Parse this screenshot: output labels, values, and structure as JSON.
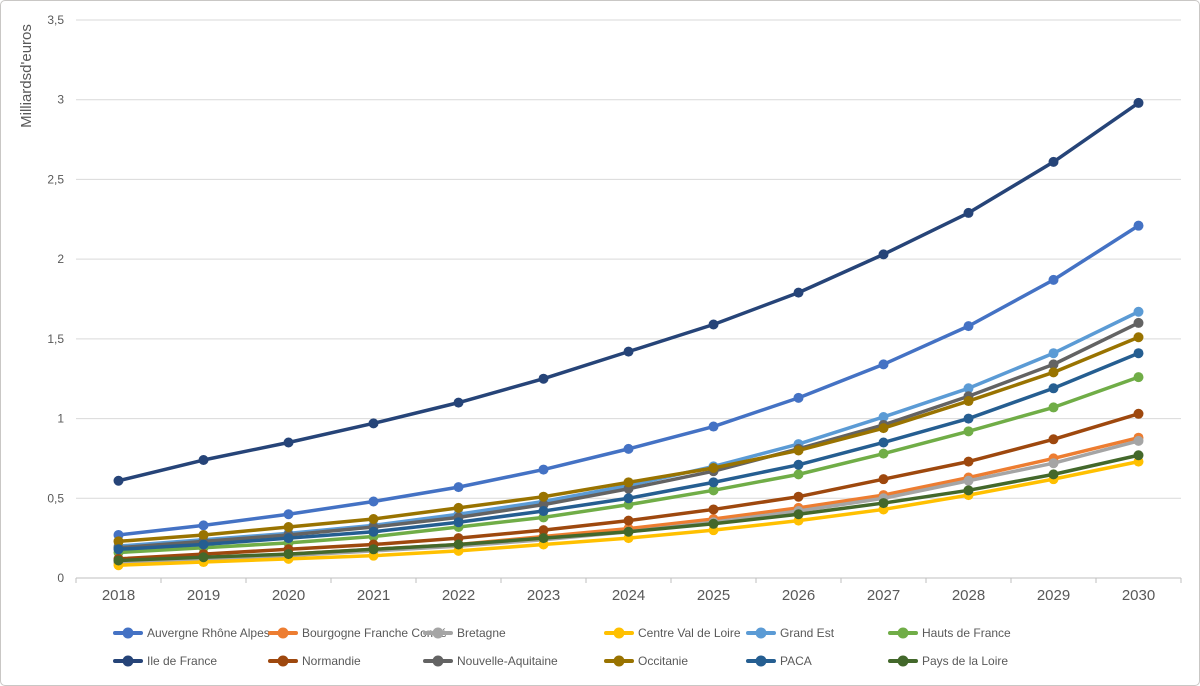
{
  "chart_data": {
    "type": "line",
    "title": "",
    "xlabel": "",
    "ylabel": "Milliardsd'euros",
    "ylim": [
      0,
      3.5
    ],
    "grid": true,
    "legend_position": "bottom",
    "x_labels": [
      "2018",
      "2019",
      "2020",
      "2021",
      "2022",
      "2023",
      "2024",
      "2025",
      "2026",
      "2027",
      "2028",
      "2029",
      "2030"
    ],
    "y_tick_values": [
      0,
      0.5,
      1,
      1.5,
      2,
      2.5,
      3,
      3.5
    ],
    "y_tick_labels": [
      "0",
      "0,5",
      "1",
      "1,5",
      "2",
      "2,5",
      "3",
      "3,5"
    ],
    "series": [
      {
        "name": "Auvergne Rhône Alpes",
        "color": "#4472C4",
        "values": [
          0.27,
          0.33,
          0.4,
          0.48,
          0.57,
          0.68,
          0.81,
          0.95,
          1.13,
          1.34,
          1.58,
          1.87,
          2.21
        ]
      },
      {
        "name": "Bourgogne Franche Comté",
        "color": "#ED7D31",
        "values": [
          0.1,
          0.12,
          0.15,
          0.18,
          0.21,
          0.26,
          0.31,
          0.37,
          0.44,
          0.52,
          0.63,
          0.75,
          0.88
        ]
      },
      {
        "name": "Bretagne",
        "color": "#A5A5A5",
        "values": [
          0.1,
          0.12,
          0.14,
          0.17,
          0.2,
          0.24,
          0.29,
          0.35,
          0.42,
          0.5,
          0.61,
          0.72,
          0.86
        ]
      },
      {
        "name": "Centre Val de Loire",
        "color": "#FFC000",
        "values": [
          0.08,
          0.1,
          0.12,
          0.14,
          0.17,
          0.21,
          0.25,
          0.3,
          0.36,
          0.43,
          0.52,
          0.62,
          0.73
        ]
      },
      {
        "name": "Grand Est",
        "color": "#5B9BD5",
        "values": [
          0.2,
          0.24,
          0.28,
          0.33,
          0.4,
          0.48,
          0.58,
          0.7,
          0.84,
          1.01,
          1.19,
          1.41,
          1.67
        ]
      },
      {
        "name": "Hauts de France",
        "color": "#70AD47",
        "values": [
          0.16,
          0.19,
          0.22,
          0.26,
          0.32,
          0.38,
          0.46,
          0.55,
          0.65,
          0.78,
          0.92,
          1.07,
          1.26
        ]
      },
      {
        "name": "Ile de France",
        "color": "#264478",
        "values": [
          0.61,
          0.74,
          0.85,
          0.97,
          1.1,
          1.25,
          1.42,
          1.59,
          1.79,
          2.03,
          2.29,
          2.61,
          2.98
        ]
      },
      {
        "name": "Normandie",
        "color": "#9E480E",
        "values": [
          0.12,
          0.15,
          0.18,
          0.21,
          0.25,
          0.3,
          0.36,
          0.43,
          0.51,
          0.62,
          0.73,
          0.87,
          1.03
        ]
      },
      {
        "name": "Nouvelle-Aquitaine",
        "color": "#636363",
        "values": [
          0.19,
          0.23,
          0.27,
          0.32,
          0.38,
          0.46,
          0.56,
          0.67,
          0.81,
          0.96,
          1.14,
          1.34,
          1.6
        ]
      },
      {
        "name": "Occitanie",
        "color": "#997300",
        "values": [
          0.23,
          0.27,
          0.32,
          0.37,
          0.44,
          0.51,
          0.6,
          0.69,
          0.8,
          0.94,
          1.11,
          1.29,
          1.51
        ]
      },
      {
        "name": "PACA",
        "color": "#255E91",
        "values": [
          0.18,
          0.21,
          0.25,
          0.29,
          0.35,
          0.42,
          0.5,
          0.6,
          0.71,
          0.85,
          1.0,
          1.19,
          1.41
        ]
      },
      {
        "name": "Pays de la Loire",
        "color": "#43682B",
        "values": [
          0.11,
          0.13,
          0.15,
          0.18,
          0.21,
          0.25,
          0.29,
          0.34,
          0.4,
          0.47,
          0.55,
          0.65,
          0.77
        ]
      }
    ],
    "style_colors": {
      "gridline": "#D9D9D9",
      "axis_line": "#BFBFBF",
      "tick_label": "#595959",
      "axis_title": "#595959",
      "legend_text": "#595959"
    }
  }
}
